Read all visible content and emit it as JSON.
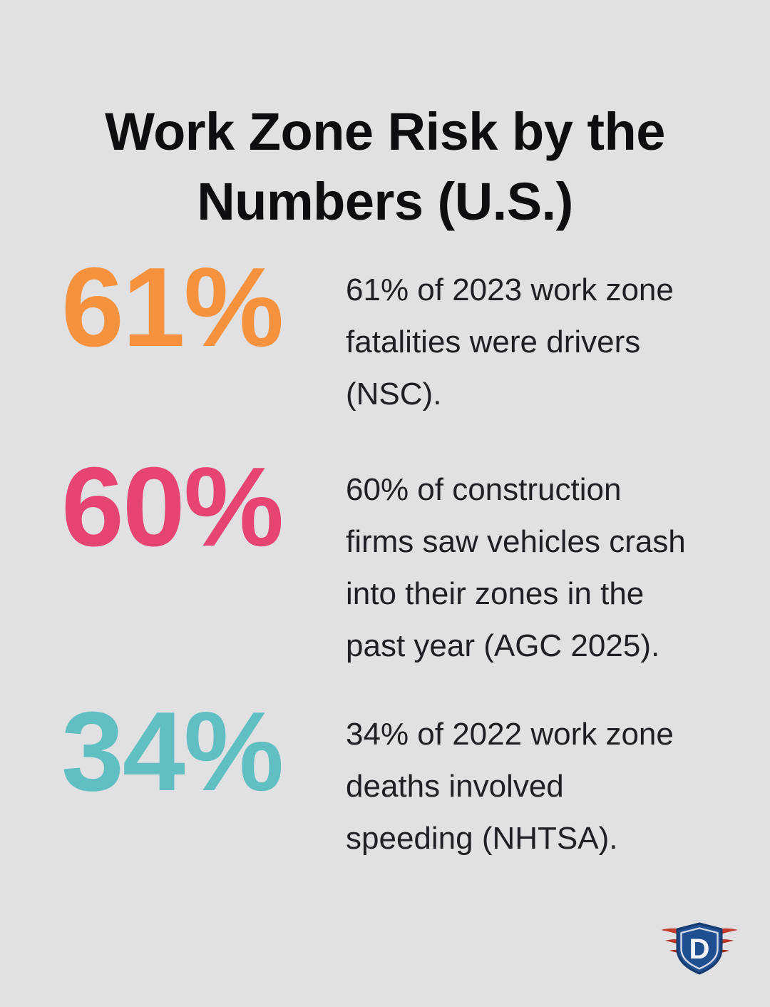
{
  "canvas": {
    "background": "#e1e0e2"
  },
  "title": {
    "lines": [
      "Work Zone Risk by the",
      "Numbers (U.S.)"
    ],
    "color": "#0e0e12"
  },
  "stats": [
    {
      "value": "61%",
      "color": "#f6923e",
      "lines": [
        "61% of 2023 work zone",
        "fatalities were drivers",
        "(NSC)."
      ]
    },
    {
      "value": "60%",
      "color": "#e64472",
      "lines": [
        "60% of construction",
        "firms saw vehicles crash",
        "into their zones in the",
        "past year (AGC 2025)."
      ]
    },
    {
      "value": "34%",
      "color": "#5fbfc3",
      "lines": [
        "34% of 2022 work zone",
        "deaths involved",
        "speeding (NHTSA)."
      ]
    }
  ],
  "text_color": "#211f26",
  "logo": {
    "letter": "D",
    "shield_color": "#1f4e91",
    "shield_rim_color": "#163b6e",
    "ring_color": "#d4dae4",
    "letter_color": "#f3f4f7",
    "wing_color": "#c23a2b",
    "wing_color_mid": "#b43427",
    "wing_color_low": "#a92f23"
  }
}
